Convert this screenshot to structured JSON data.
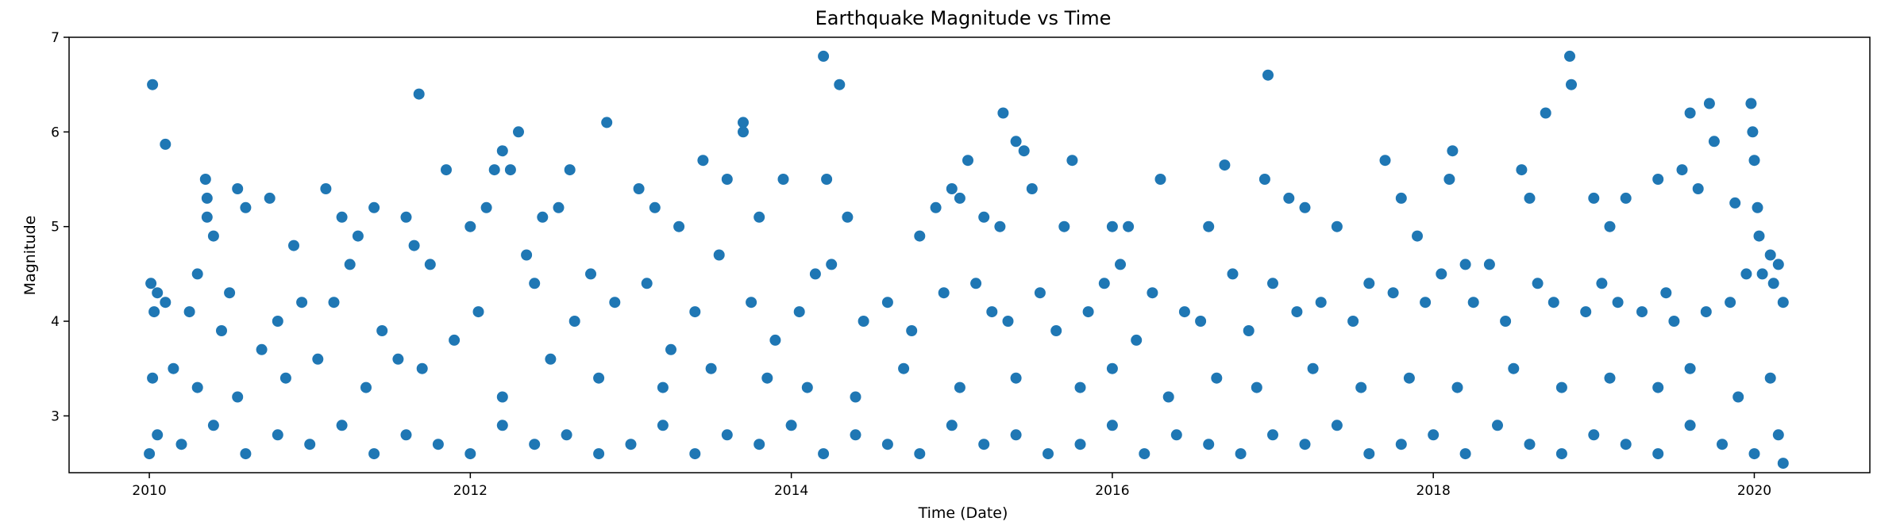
{
  "chart_data": {
    "type": "scatter",
    "title": "Earthquake Magnitude vs Time",
    "xlabel": "Time (Date)",
    "ylabel": "Magnitude",
    "xlim": [
      2009.5,
      2020.72
    ],
    "ylim": [
      2.4,
      7.0
    ],
    "xticks": [
      2010,
      2012,
      2014,
      2016,
      2018,
      2020
    ],
    "yticks": [
      3,
      4,
      5,
      6,
      7
    ],
    "grid": false,
    "color": "#1f77b4",
    "series": [
      {
        "points": [
          [
            2010.02,
            6.5
          ],
          [
            2010.1,
            5.87
          ],
          [
            2010.3,
            4.5
          ],
          [
            2010.35,
            5.5
          ],
          [
            2010.36,
            5.3
          ],
          [
            2010.36,
            5.1
          ],
          [
            2010.5,
            4.3
          ],
          [
            2010.55,
            5.4
          ],
          [
            2010.6,
            5.2
          ],
          [
            2010.75,
            5.3
          ],
          [
            2010.9,
            4.8
          ],
          [
            2011.1,
            5.4
          ],
          [
            2011.2,
            5.1
          ],
          [
            2011.3,
            4.9
          ],
          [
            2011.4,
            5.2
          ],
          [
            2011.6,
            5.1
          ],
          [
            2011.65,
            4.8
          ],
          [
            2011.68,
            6.4
          ],
          [
            2011.75,
            4.6
          ],
          [
            2011.85,
            5.6
          ],
          [
            2012.0,
            5.0
          ],
          [
            2012.1,
            5.2
          ],
          [
            2012.15,
            5.6
          ],
          [
            2012.2,
            5.8
          ],
          [
            2012.25,
            5.6
          ],
          [
            2012.3,
            6.0
          ],
          [
            2012.45,
            5.1
          ],
          [
            2012.55,
            5.2
          ],
          [
            2012.62,
            5.6
          ],
          [
            2012.85,
            6.1
          ],
          [
            2013.05,
            5.4
          ],
          [
            2013.15,
            5.2
          ],
          [
            2013.3,
            5.0
          ],
          [
            2013.45,
            5.7
          ],
          [
            2013.6,
            5.5
          ],
          [
            2013.7,
            6.1
          ],
          [
            2013.7,
            6.0
          ],
          [
            2013.8,
            5.1
          ],
          [
            2013.95,
            5.5
          ],
          [
            2014.2,
            6.8
          ],
          [
            2014.22,
            5.5
          ],
          [
            2014.3,
            6.5
          ],
          [
            2014.35,
            5.1
          ],
          [
            2014.8,
            4.9
          ],
          [
            2014.9,
            5.2
          ],
          [
            2015.0,
            5.4
          ],
          [
            2015.05,
            5.3
          ],
          [
            2015.1,
            5.7
          ],
          [
            2015.2,
            5.1
          ],
          [
            2015.3,
            5.0
          ],
          [
            2015.32,
            6.2
          ],
          [
            2015.4,
            5.9
          ],
          [
            2015.45,
            5.8
          ],
          [
            2015.5,
            5.4
          ],
          [
            2015.7,
            5.0
          ],
          [
            2015.75,
            5.7
          ],
          [
            2016.0,
            5.0
          ],
          [
            2016.1,
            5.0
          ],
          [
            2016.3,
            5.5
          ],
          [
            2016.6,
            5.0
          ],
          [
            2016.7,
            5.65
          ],
          [
            2016.95,
            5.5
          ],
          [
            2016.97,
            6.6
          ],
          [
            2017.1,
            5.3
          ],
          [
            2017.2,
            5.2
          ],
          [
            2017.4,
            5.0
          ],
          [
            2017.7,
            5.7
          ],
          [
            2017.8,
            5.3
          ],
          [
            2017.9,
            4.9
          ],
          [
            2018.1,
            5.5
          ],
          [
            2018.12,
            5.8
          ],
          [
            2018.2,
            4.6
          ],
          [
            2018.55,
            5.6
          ],
          [
            2018.6,
            5.3
          ],
          [
            2018.7,
            6.2
          ],
          [
            2018.85,
            6.8
          ],
          [
            2018.86,
            6.5
          ],
          [
            2019.0,
            5.3
          ],
          [
            2019.1,
            5.0
          ],
          [
            2019.2,
            5.3
          ],
          [
            2019.4,
            5.5
          ],
          [
            2019.55,
            5.6
          ],
          [
            2019.6,
            6.2
          ],
          [
            2019.65,
            5.4
          ],
          [
            2019.72,
            6.3
          ],
          [
            2019.75,
            5.9
          ],
          [
            2019.88,
            5.25
          ],
          [
            2019.98,
            6.3
          ],
          [
            2019.99,
            6.0
          ],
          [
            2020.0,
            5.7
          ],
          [
            2020.02,
            5.2
          ],
          [
            2020.03,
            4.9
          ],
          [
            2020.1,
            4.7
          ],
          [
            2020.15,
            4.6
          ],
          [
            2020.18,
            4.2
          ],
          [
            2010.01,
            4.4
          ],
          [
            2010.03,
            4.1
          ],
          [
            2010.05,
            4.3
          ],
          [
            2010.1,
            4.2
          ],
          [
            2010.25,
            4.1
          ],
          [
            2010.4,
            4.9
          ],
          [
            2010.45,
            3.9
          ],
          [
            2010.7,
            3.7
          ],
          [
            2010.8,
            4.0
          ],
          [
            2010.95,
            4.2
          ],
          [
            2011.15,
            4.2
          ],
          [
            2011.25,
            4.6
          ],
          [
            2011.45,
            3.9
          ],
          [
            2011.55,
            3.6
          ],
          [
            2011.9,
            3.8
          ],
          [
            2012.05,
            4.1
          ],
          [
            2012.35,
            4.7
          ],
          [
            2012.4,
            4.4
          ],
          [
            2012.65,
            4.0
          ],
          [
            2012.75,
            4.5
          ],
          [
            2012.9,
            4.2
          ],
          [
            2013.1,
            4.4
          ],
          [
            2013.25,
            3.7
          ],
          [
            2013.4,
            4.1
          ],
          [
            2013.55,
            4.7
          ],
          [
            2013.75,
            4.2
          ],
          [
            2013.9,
            3.8
          ],
          [
            2014.05,
            4.1
          ],
          [
            2014.15,
            4.5
          ],
          [
            2014.25,
            4.6
          ],
          [
            2014.45,
            4.0
          ],
          [
            2014.6,
            4.2
          ],
          [
            2014.75,
            3.9
          ],
          [
            2014.95,
            4.3
          ],
          [
            2015.15,
            4.4
          ],
          [
            2015.25,
            4.1
          ],
          [
            2015.35,
            4.0
          ],
          [
            2015.55,
            4.3
          ],
          [
            2015.65,
            3.9
          ],
          [
            2015.85,
            4.1
          ],
          [
            2015.95,
            4.4
          ],
          [
            2016.05,
            4.6
          ],
          [
            2016.15,
            3.8
          ],
          [
            2016.25,
            4.3
          ],
          [
            2016.45,
            4.1
          ],
          [
            2016.55,
            4.0
          ],
          [
            2016.75,
            4.5
          ],
          [
            2016.85,
            3.9
          ],
          [
            2017.0,
            4.4
          ],
          [
            2017.15,
            4.1
          ],
          [
            2017.3,
            4.2
          ],
          [
            2017.5,
            4.0
          ],
          [
            2017.6,
            4.4
          ],
          [
            2017.75,
            4.3
          ],
          [
            2017.95,
            4.2
          ],
          [
            2018.05,
            4.5
          ],
          [
            2018.25,
            4.2
          ],
          [
            2018.35,
            4.6
          ],
          [
            2018.45,
            4.0
          ],
          [
            2018.65,
            4.4
          ],
          [
            2018.75,
            4.2
          ],
          [
            2018.95,
            4.1
          ],
          [
            2019.05,
            4.4
          ],
          [
            2019.15,
            4.2
          ],
          [
            2019.3,
            4.1
          ],
          [
            2019.45,
            4.3
          ],
          [
            2019.5,
            4.0
          ],
          [
            2019.7,
            4.1
          ],
          [
            2019.85,
            4.2
          ],
          [
            2019.95,
            4.5
          ],
          [
            2020.05,
            4.5
          ],
          [
            2020.12,
            4.4
          ],
          [
            2010.02,
            3.4
          ],
          [
            2010.15,
            3.5
          ],
          [
            2010.3,
            3.3
          ],
          [
            2010.55,
            3.2
          ],
          [
            2010.85,
            3.4
          ],
          [
            2011.05,
            3.6
          ],
          [
            2011.35,
            3.3
          ],
          [
            2011.7,
            3.5
          ],
          [
            2012.2,
            3.2
          ],
          [
            2012.5,
            3.6
          ],
          [
            2012.8,
            3.4
          ],
          [
            2013.2,
            3.3
          ],
          [
            2013.5,
            3.5
          ],
          [
            2013.85,
            3.4
          ],
          [
            2014.1,
            3.3
          ],
          [
            2014.4,
            3.2
          ],
          [
            2014.7,
            3.5
          ],
          [
            2015.05,
            3.3
          ],
          [
            2015.4,
            3.4
          ],
          [
            2015.8,
            3.3
          ],
          [
            2016.0,
            3.5
          ],
          [
            2016.35,
            3.2
          ],
          [
            2016.65,
            3.4
          ],
          [
            2016.9,
            3.3
          ],
          [
            2017.25,
            3.5
          ],
          [
            2017.55,
            3.3
          ],
          [
            2017.85,
            3.4
          ],
          [
            2018.15,
            3.3
          ],
          [
            2018.5,
            3.5
          ],
          [
            2018.8,
            3.3
          ],
          [
            2019.1,
            3.4
          ],
          [
            2019.4,
            3.3
          ],
          [
            2019.6,
            3.5
          ],
          [
            2019.9,
            3.2
          ],
          [
            2020.1,
            3.4
          ],
          [
            2010.0,
            2.6
          ],
          [
            2010.05,
            2.8
          ],
          [
            2010.2,
            2.7
          ],
          [
            2010.4,
            2.9
          ],
          [
            2010.6,
            2.6
          ],
          [
            2010.8,
            2.8
          ],
          [
            2011.0,
            2.7
          ],
          [
            2011.2,
            2.9
          ],
          [
            2011.4,
            2.6
          ],
          [
            2011.6,
            2.8
          ],
          [
            2011.8,
            2.7
          ],
          [
            2012.0,
            2.6
          ],
          [
            2012.2,
            2.9
          ],
          [
            2012.4,
            2.7
          ],
          [
            2012.6,
            2.8
          ],
          [
            2012.8,
            2.6
          ],
          [
            2013.0,
            2.7
          ],
          [
            2013.2,
            2.9
          ],
          [
            2013.4,
            2.6
          ],
          [
            2013.6,
            2.8
          ],
          [
            2013.8,
            2.7
          ],
          [
            2014.0,
            2.9
          ],
          [
            2014.2,
            2.6
          ],
          [
            2014.4,
            2.8
          ],
          [
            2014.6,
            2.7
          ],
          [
            2014.8,
            2.6
          ],
          [
            2015.0,
            2.9
          ],
          [
            2015.2,
            2.7
          ],
          [
            2015.4,
            2.8
          ],
          [
            2015.6,
            2.6
          ],
          [
            2015.8,
            2.7
          ],
          [
            2016.0,
            2.9
          ],
          [
            2016.2,
            2.6
          ],
          [
            2016.4,
            2.8
          ],
          [
            2016.6,
            2.7
          ],
          [
            2016.8,
            2.6
          ],
          [
            2017.0,
            2.8
          ],
          [
            2017.2,
            2.7
          ],
          [
            2017.4,
            2.9
          ],
          [
            2017.6,
            2.6
          ],
          [
            2017.8,
            2.7
          ],
          [
            2018.0,
            2.8
          ],
          [
            2018.2,
            2.6
          ],
          [
            2018.4,
            2.9
          ],
          [
            2018.6,
            2.7
          ],
          [
            2018.8,
            2.6
          ],
          [
            2019.0,
            2.8
          ],
          [
            2019.2,
            2.7
          ],
          [
            2019.4,
            2.6
          ],
          [
            2019.6,
            2.9
          ],
          [
            2019.8,
            2.7
          ],
          [
            2020.0,
            2.6
          ],
          [
            2020.15,
            2.8
          ],
          [
            2020.18,
            2.5
          ]
        ]
      }
    ]
  }
}
